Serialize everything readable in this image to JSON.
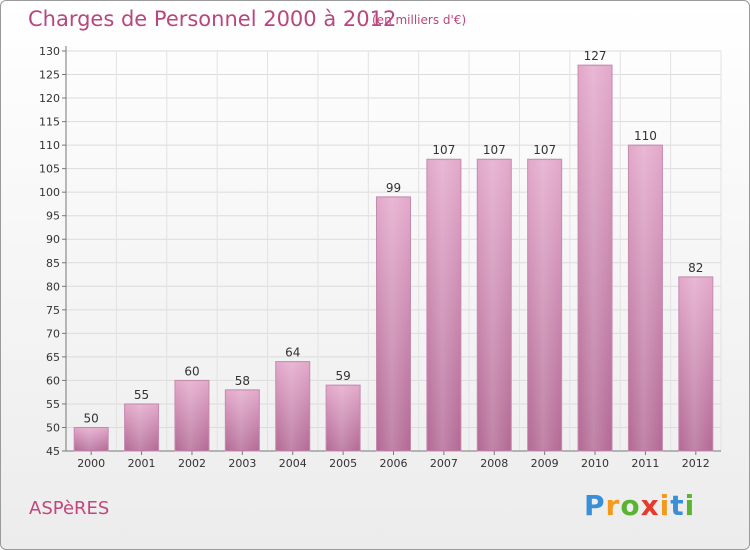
{
  "chart_data": {
    "type": "bar",
    "title": "Charges de Personnel 2000 à 2012",
    "subtitle": "(en milliers d'€)",
    "categories": [
      "2000",
      "2001",
      "2002",
      "2003",
      "2004",
      "2005",
      "2006",
      "2007",
      "2008",
      "2009",
      "2010",
      "2011",
      "2012"
    ],
    "values": [
      50,
      55,
      60,
      58,
      64,
      59,
      99,
      107,
      107,
      107,
      127,
      110,
      82
    ],
    "data_labels": [
      "50",
      "55",
      "60",
      "58",
      "64",
      "59",
      "99",
      "107",
      "107",
      "107",
      "127",
      "110",
      "82"
    ],
    "ylim": [
      45,
      130
    ],
    "yticks": [
      "45",
      "50",
      "55",
      "60",
      "65",
      "70",
      "75",
      "80",
      "85",
      "90",
      "95",
      "100",
      "105",
      "110",
      "115",
      "120",
      "125",
      "130"
    ],
    "grid": true,
    "bar_color": "#dc9ec1",
    "label_color": "#333333"
  },
  "footer": {
    "commune": "ASPèRES",
    "brand_letters": [
      {
        "char": "P",
        "color": "#3a8fd6"
      },
      {
        "char": "r",
        "color": "#f39a1e"
      },
      {
        "char": "o",
        "color": "#5bb431"
      },
      {
        "char": "x",
        "color": "#e63a2b"
      },
      {
        "char": "i",
        "color": "#f39a1e"
      },
      {
        "char": "t",
        "color": "#3a8fd6"
      },
      {
        "char": "i",
        "color": "#5bb431"
      }
    ]
  }
}
